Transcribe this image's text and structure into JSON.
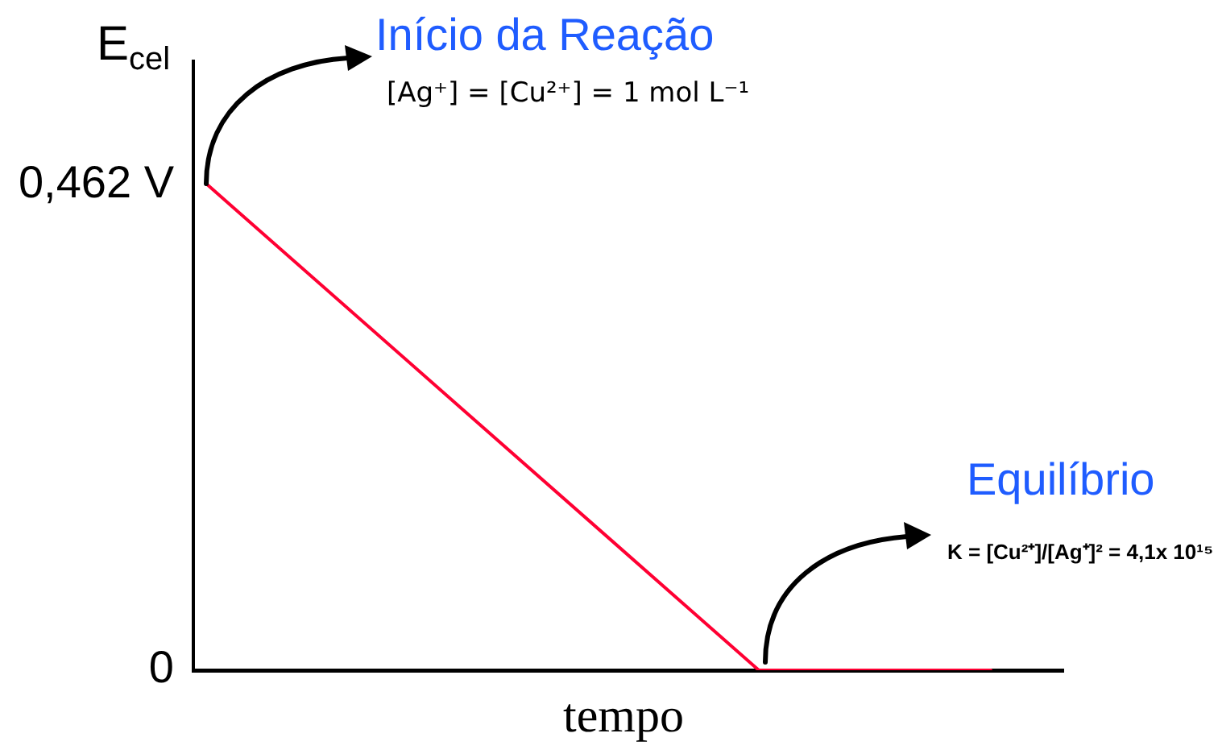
{
  "chart_data": {
    "type": "line",
    "xlabel": "tempo",
    "ylabel": "E$_{cel}$",
    "annotations": [
      "Início da Reação",
      "[Ag⁺] = [Cu²⁺] = 1 mol L⁻¹",
      "Equilíbrio",
      "K = [Cu²⁺]/[Ag⁺]² = 4,1x 10¹⁵"
    ],
    "categories": [
      null,
      null,
      null,
      null,
      null,
      null,
      null,
      null,
      null,
      null,
      null,
      null,
      null,
      null,
      null,
      null,
      null,
      null,
      null,
      null,
      null,
      null,
      null,
      null,
      null,
      null,
      null,
      null,
      null,
      null
    ],
    "values": [
      0.462,
      null,
      null,
      null,
      null,
      null,
      null,
      null,
      null,
      null,
      null,
      null,
      null,
      null,
      null,
      null,
      null,
      null,
      null,
      0,
      null,
      null,
      null,
      null,
      null,
      null,
      null,
      0,
      null,
      null
    ],
    "color": "#ff0033",
    "ylim": [
      0,
      0.58
    ],
    "yticks": [
      0,
      {
        "value": 0.462,
        "label": "0,462 V"
      }
    ],
    "marker": "none",
    "line_style": "solid"
  }
}
